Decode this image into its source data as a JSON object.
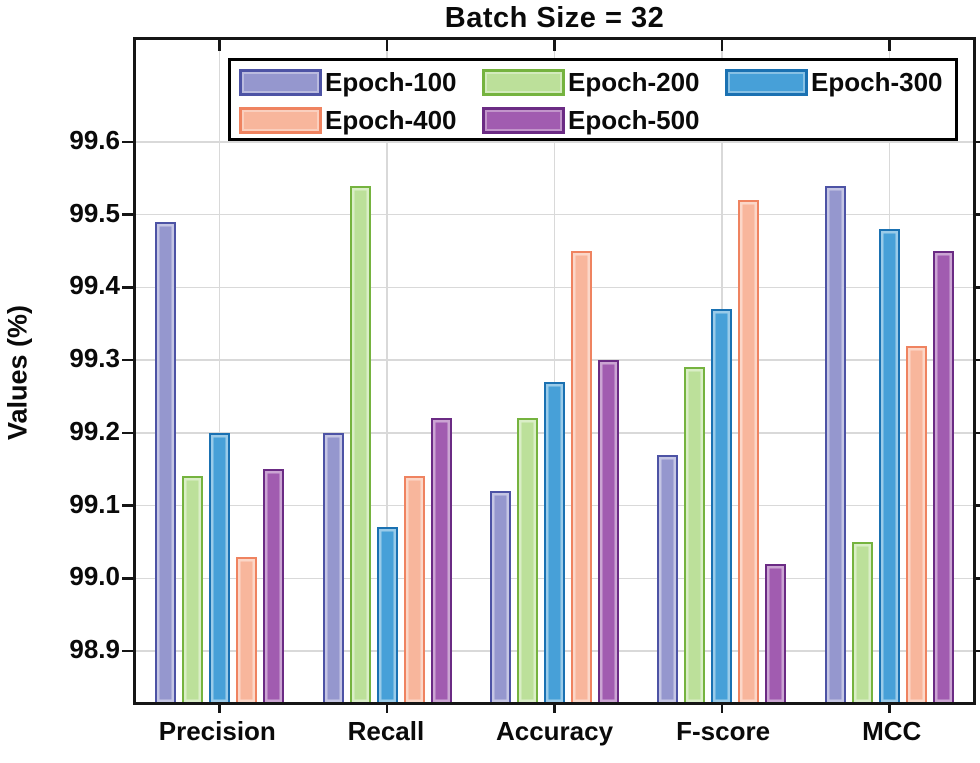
{
  "figure": {
    "title": "Batch Size = 32",
    "ylabel": "Values (%)"
  },
  "chart_data": {
    "type": "bar",
    "title": "Batch Size = 32",
    "xlabel": "",
    "ylabel": "Values (%)",
    "categories": [
      "Precision",
      "Recall",
      "Accuracy",
      "F-score",
      "MCC"
    ],
    "series": [
      {
        "name": "Epoch-100",
        "fill": "#9597CE",
        "edge": "#4D53A5",
        "values": [
          99.49,
          99.2,
          99.12,
          99.17,
          99.54
        ]
      },
      {
        "name": "Epoch-200",
        "fill": "#BCE09A",
        "edge": "#75B33F",
        "values": [
          99.14,
          99.54,
          99.22,
          99.29,
          99.05
        ]
      },
      {
        "name": "Epoch-300",
        "fill": "#47A0D8",
        "edge": "#1A71B2",
        "values": [
          99.2,
          99.07,
          99.27,
          99.37,
          99.48
        ]
      },
      {
        "name": "Epoch-400",
        "fill": "#F8B69C",
        "edge": "#EF8360",
        "values": [
          99.03,
          99.14,
          99.45,
          99.52,
          99.32
        ]
      },
      {
        "name": "Epoch-500",
        "fill": "#A15CB0",
        "edge": "#6B2B84",
        "values": [
          99.15,
          99.22,
          99.3,
          99.02,
          99.45
        ]
      }
    ],
    "ylim": [
      98.83,
      99.74
    ],
    "yticks": [
      98.9,
      99.0,
      99.1,
      99.2,
      99.3,
      99.4,
      99.5,
      99.6
    ],
    "ytick_labels": [
      "98.9",
      "99.0",
      "99.1",
      "99.2",
      "99.3",
      "99.4",
      "99.5",
      "99.6"
    ],
    "grid": "on",
    "legend_position": "inside-top",
    "colors": {
      "grid": "#d9d9d9",
      "axis": "#151515",
      "text": "#0a0a0a"
    }
  }
}
